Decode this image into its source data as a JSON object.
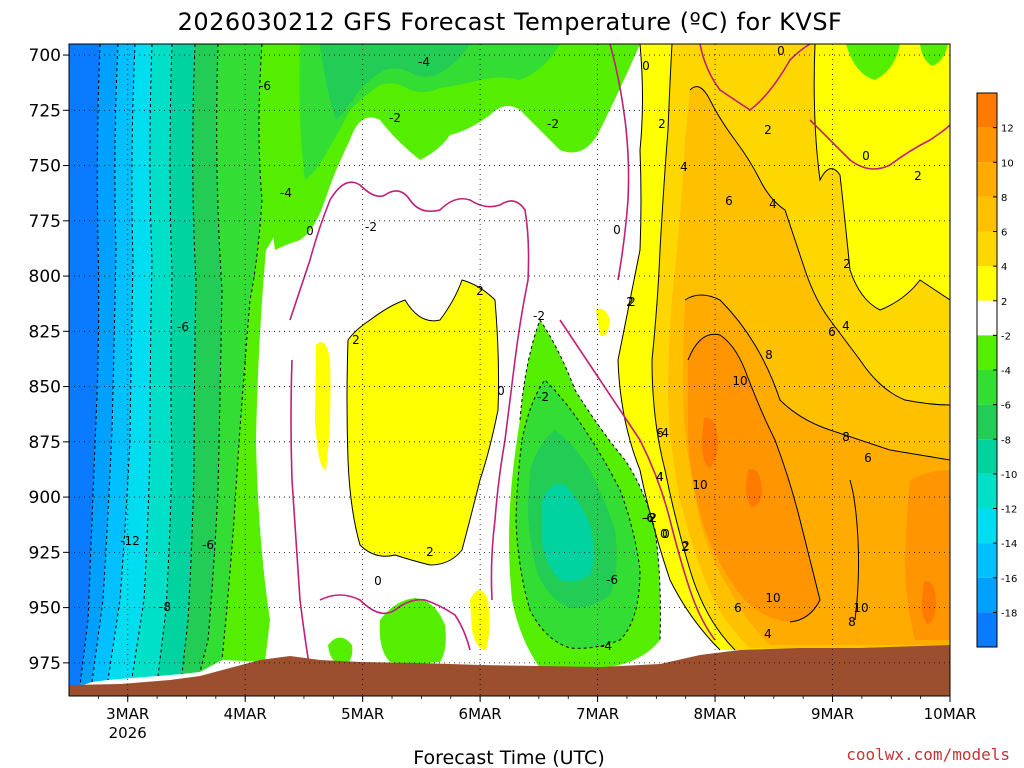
{
  "chart_data": {
    "type": "heatmap",
    "title": "2026030212 GFS Forecast Temperature (ºC) for KVSF",
    "xlabel": "Forecast Time (UTC)",
    "ylabel": "",
    "x_ticks": [
      {
        "label": "3MAR",
        "sub": "2026",
        "day": 0.5
      },
      {
        "label": "4MAR",
        "sub": "",
        "day": 1.5
      },
      {
        "label": "5MAR",
        "sub": "",
        "day": 2.5
      },
      {
        "label": "6MAR",
        "sub": "",
        "day": 3.5
      },
      {
        "label": "7MAR",
        "sub": "",
        "day": 4.5
      },
      {
        "label": "8MAR",
        "sub": "",
        "day": 5.5
      },
      {
        "label": "9MAR",
        "sub": "",
        "day": 6.5
      },
      {
        "label": "10MAR",
        "sub": "",
        "day": 7.5
      }
    ],
    "y_ticks": [
      700,
      725,
      750,
      775,
      800,
      825,
      850,
      875,
      900,
      925,
      950,
      975
    ],
    "xlim": [
      0,
      7.5
    ],
    "ylim": [
      695,
      990
    ],
    "y_inverted": true,
    "grid": "dotted",
    "colorbar": {
      "placement": "right",
      "labels": [
        12,
        10,
        8,
        6,
        4,
        2,
        -2,
        -4,
        -6,
        -8,
        -10,
        -12,
        -14,
        -16,
        -18
      ],
      "bands": [
        {
          "range": [
            12,
            14
          ],
          "color": "#ff7a00"
        },
        {
          "range": [
            10,
            12
          ],
          "color": "#ff9500"
        },
        {
          "range": [
            8,
            10
          ],
          "color": "#ffab00"
        },
        {
          "range": [
            6,
            8
          ],
          "color": "#ffc000"
        },
        {
          "range": [
            4,
            6
          ],
          "color": "#ffd700"
        },
        {
          "range": [
            2,
            4
          ],
          "color": "#ffff00"
        },
        {
          "range": [
            -2,
            2
          ],
          "color": "#ffffff"
        },
        {
          "range": [
            -4,
            -2
          ],
          "color": "#55ee00"
        },
        {
          "range": [
            -6,
            -4
          ],
          "color": "#33dd33"
        },
        {
          "range": [
            -8,
            -6
          ],
          "color": "#22cc55"
        },
        {
          "range": [
            -10,
            -8
          ],
          "color": "#00d2a0"
        },
        {
          "range": [
            -12,
            -10
          ],
          "color": "#00e0c8"
        },
        {
          "range": [
            -14,
            -12
          ],
          "color": "#00ddf0"
        },
        {
          "range": [
            -16,
            -14
          ],
          "color": "#00c0ff"
        },
        {
          "range": [
            -18,
            -16
          ],
          "color": "#00a0ff"
        },
        {
          "range": [
            -20,
            -18
          ],
          "color": "#0a7aff"
        }
      ]
    },
    "regions": [
      {
        "name": "cold-early-column",
        "temp_range": [
          -20,
          -2
        ],
        "x": [
          0,
          1.7
        ],
        "y": [
          695,
          980
        ]
      },
      {
        "name": "cool-upper-levels-4-6mar",
        "temp_range": [
          -6,
          -2
        ],
        "x": [
          1.7,
          4.3
        ],
        "y": [
          695,
          770
        ]
      },
      {
        "name": "warm-midlevel-5-6mar",
        "temp_range": [
          2,
          4
        ],
        "x": [
          2.4,
          3.6
        ],
        "y": [
          795,
          925
        ]
      },
      {
        "name": "cold-pocket-7mar",
        "temp_range": [
          -8,
          -2
        ],
        "x": [
          3.7,
          5.0
        ],
        "y": [
          820,
          985
        ]
      },
      {
        "name": "warm-advection-8-10mar",
        "temp_range": [
          2,
          14
        ],
        "x": [
          4.7,
          7.5
        ],
        "y": [
          695,
          975
        ]
      }
    ],
    "terrain": {
      "name": "ground-surface",
      "color": "#9c4f2e",
      "pressure_start": 988,
      "pressure_end": 972
    },
    "contour_labels": [
      "-4",
      "-6",
      "-2",
      "-4",
      "-2",
      "0",
      "-2",
      "0",
      "0",
      "0",
      "2",
      "2",
      "2",
      "-6",
      "-2",
      "2",
      "-2",
      "2",
      "0",
      "-4",
      "-6",
      "-8",
      "-12",
      "-6",
      "0",
      "2",
      "-2",
      "0",
      "-6",
      "-4",
      "2",
      "4",
      "6",
      "4",
      "2",
      "2",
      "0",
      "2",
      "4",
      "6",
      "8",
      "10",
      "6",
      "4",
      "8",
      "10",
      "-2",
      "0",
      "2",
      "6",
      "4",
      "10",
      "8",
      "10",
      "6",
      "4"
    ],
    "contour_colors": {
      "temperature": "#000000",
      "freezing": "#c0207a"
    }
  },
  "credit": "coolwx.com/models"
}
